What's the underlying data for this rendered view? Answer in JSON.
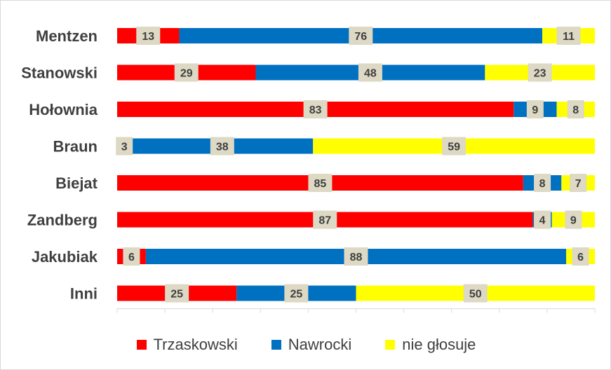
{
  "chart_data": {
    "type": "bar",
    "orientation": "horizontal",
    "stacked": true,
    "categories": [
      "Mentzen",
      "Stanowski",
      "Hołownia",
      "Braun",
      "Biejat",
      "Zandberg",
      "Jakubiak",
      "Inni"
    ],
    "series": [
      {
        "name": "Trzaskowski",
        "color": "#ff0000",
        "values": [
          13,
          29,
          83,
          3,
          85,
          87,
          6,
          25
        ]
      },
      {
        "name": "Nawrocki",
        "color": "#0070c0",
        "values": [
          76,
          48,
          9,
          38,
          8,
          4,
          88,
          25
        ]
      },
      {
        "name": "nie głosuje",
        "color": "#ffff00",
        "values": [
          11,
          23,
          8,
          59,
          7,
          9,
          6,
          50
        ]
      }
    ],
    "xlim": [
      0,
      100
    ],
    "grid": false,
    "legend_position": "bottom",
    "data_label_background": "#ddd9c4"
  }
}
